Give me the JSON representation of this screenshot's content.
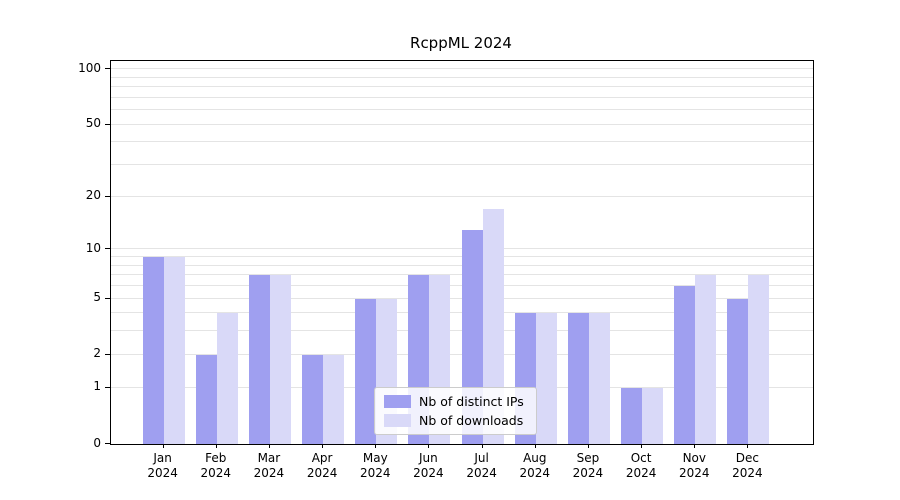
{
  "chart_data": {
    "type": "bar",
    "title": "RcppML 2024",
    "categories": [
      {
        "month": "Jan",
        "year": "2024"
      },
      {
        "month": "Feb",
        "year": "2024"
      },
      {
        "month": "Mar",
        "year": "2024"
      },
      {
        "month": "Apr",
        "year": "2024"
      },
      {
        "month": "May",
        "year": "2024"
      },
      {
        "month": "Jun",
        "year": "2024"
      },
      {
        "month": "Jul",
        "year": "2024"
      },
      {
        "month": "Aug",
        "year": "2024"
      },
      {
        "month": "Sep",
        "year": "2024"
      },
      {
        "month": "Oct",
        "year": "2024"
      },
      {
        "month": "Nov",
        "year": "2024"
      },
      {
        "month": "Dec",
        "year": "2024"
      }
    ],
    "series": [
      {
        "name": "Nb of distinct IPs",
        "color": "#9f9ff0",
        "values": [
          9,
          2,
          7,
          2,
          5,
          7,
          13,
          4,
          4,
          1,
          6,
          5
        ]
      },
      {
        "name": "Nb of downloads",
        "color": "#d9d9f8",
        "values": [
          9,
          4,
          7,
          2,
          5,
          7,
          17,
          4,
          4,
          1,
          7,
          7
        ]
      }
    ],
    "yscale": "log1p",
    "yticks": [
      0,
      1,
      2,
      5,
      10,
      20,
      50,
      100
    ],
    "gridlines": [
      1,
      2,
      3,
      4,
      5,
      6,
      7,
      8,
      9,
      10,
      20,
      30,
      40,
      50,
      60,
      70,
      80,
      90,
      100
    ],
    "ylim": [
      0,
      110
    ],
    "grid": true,
    "legend_position": "bottom-center-inside",
    "xlabel": "",
    "ylabel": ""
  },
  "legend": {
    "items": [
      {
        "label": "Nb of distinct IPs",
        "color": "#9f9ff0"
      },
      {
        "label": "Nb of downloads",
        "color": "#d9d9f8"
      }
    ]
  }
}
